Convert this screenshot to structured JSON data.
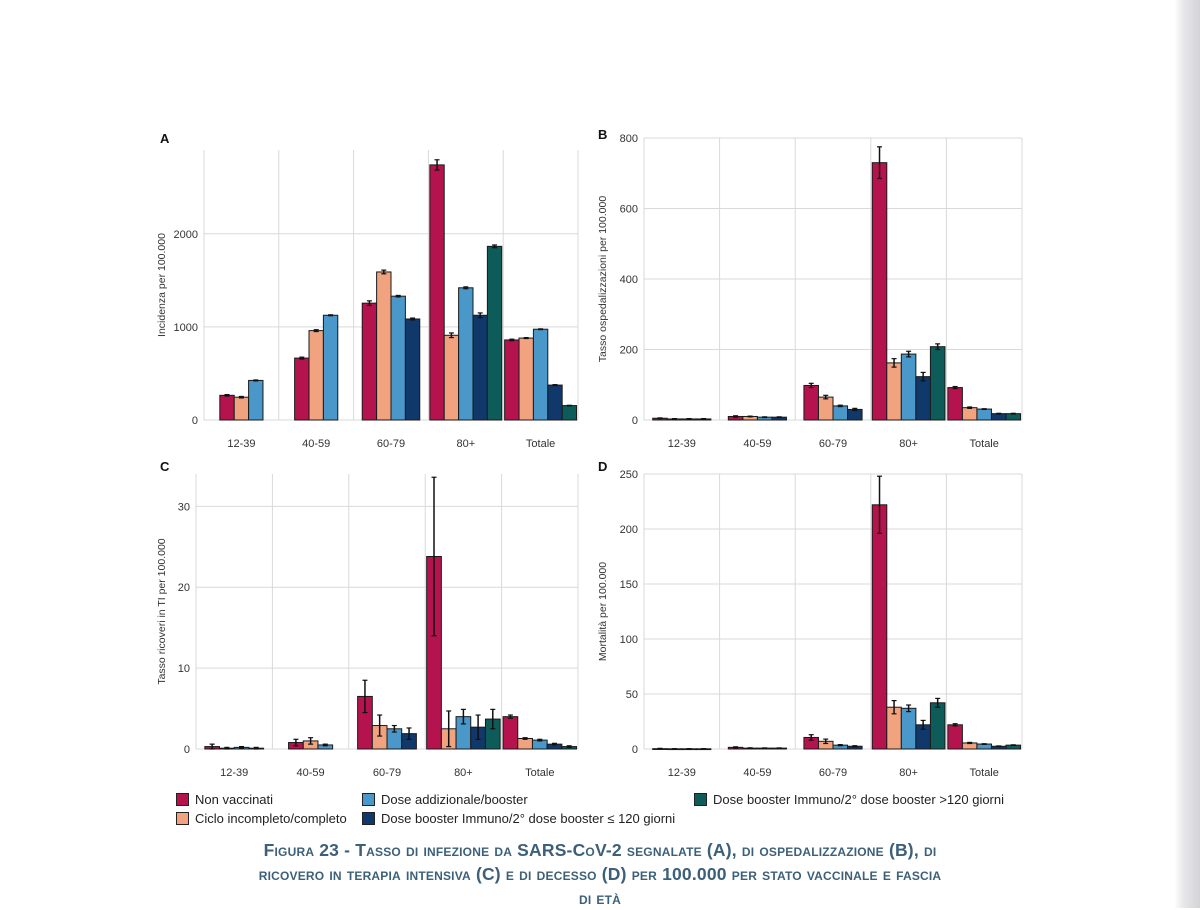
{
  "colors": {
    "non_vaccinati": "#b5134e",
    "ciclo": "#f1a27f",
    "addizionale": "#4a97c9",
    "booster_le120": "#10386a",
    "booster_gt120": "#0d5c59"
  },
  "legend": {
    "items": [
      {
        "key": "non_vaccinati",
        "label": "Non vaccinati"
      },
      {
        "key": "ciclo",
        "label": "Ciclo incompleto/completo"
      },
      {
        "key": "addizionale",
        "label": "Dose addizionale/booster"
      },
      {
        "key": "booster_le120",
        "label": "Dose booster Immuno/2° dose booster ≤ 120 giorni"
      },
      {
        "key": "booster_gt120",
        "label": "Dose booster Immuno/2° dose booster >120 giorni"
      }
    ]
  },
  "caption": {
    "line1": "Figura 23 - Tasso di infezione da SARS-CoV-2 segnalate (A), di ospedalizzazione (B), di",
    "line2": "ricovero in terapia intensiva (C) e di decesso (D) per 100.000 per stato vaccinale e fascia",
    "line3": "di età"
  },
  "chart_data": [
    {
      "panel": "A",
      "type": "bar",
      "title": "A",
      "ylabel": "Incidenza per 100.000",
      "categories": [
        "12-39",
        "40-59",
        "60-79",
        "80+",
        "Totale"
      ],
      "ylim": [
        0,
        2900
      ],
      "yticks": [
        0,
        1000,
        2000
      ],
      "series": [
        {
          "key": "non_vaccinati",
          "name": "Non vaccinati",
          "values": [
            265,
            665,
            1255,
            2740,
            860
          ],
          "err": [
            8,
            10,
            25,
            55,
            8
          ]
        },
        {
          "key": "ciclo",
          "name": "Ciclo incompleto/completo",
          "values": [
            245,
            960,
            1590,
            910,
            880
          ],
          "err": [
            8,
            10,
            20,
            25,
            5
          ]
        },
        {
          "key": "addizionale",
          "name": "Dose addizionale/booster",
          "values": [
            425,
            1125,
            1330,
            1420,
            975
          ],
          "err": [
            5,
            5,
            8,
            10,
            4
          ]
        },
        {
          "key": "booster_le120",
          "name": "Dose booster Immuno/2° dose booster ≤ 120 giorni",
          "values": [
            null,
            null,
            1085,
            1125,
            375
          ],
          "err": [
            null,
            null,
            10,
            25,
            5
          ]
        },
        {
          "key": "booster_gt120",
          "name": "Dose booster Immuno/2° dose booster >120 giorni",
          "values": [
            null,
            null,
            null,
            1865,
            155
          ],
          "err": [
            null,
            null,
            null,
            15,
            3
          ]
        }
      ]
    },
    {
      "panel": "B",
      "type": "bar",
      "title": "B",
      "ylabel": "Tasso ospedalizzazioni per 100.000",
      "categories": [
        "12-39",
        "40-59",
        "60-79",
        "80+",
        "Totale"
      ],
      "ylim": [
        0,
        800
      ],
      "yticks": [
        0,
        200,
        400,
        600,
        800
      ],
      "series": [
        {
          "key": "non_vaccinati",
          "name": "Non vaccinati",
          "values": [
            5,
            10,
            98,
            730,
            92
          ],
          "err": [
            1,
            2,
            6,
            45,
            3
          ]
        },
        {
          "key": "ciclo",
          "name": "Ciclo incompleto/completo",
          "values": [
            3,
            10,
            65,
            162,
            35
          ],
          "err": [
            1,
            1,
            5,
            12,
            2
          ]
        },
        {
          "key": "addizionale",
          "name": "Dose addizionale/booster",
          "values": [
            3,
            8,
            40,
            187,
            31
          ],
          "err": [
            1,
            1,
            2,
            8,
            1
          ]
        },
        {
          "key": "booster_le120",
          "name": "Dose booster Immuno/2° dose booster ≤ 120 giorni",
          "values": [
            3,
            8,
            30,
            123,
            18
          ],
          "err": [
            1,
            1,
            3,
            12,
            1
          ]
        },
        {
          "key": "booster_gt120",
          "name": "Dose booster Immuno/2° dose booster >120 giorni",
          "values": [
            null,
            null,
            null,
            208,
            18
          ],
          "err": [
            null,
            null,
            null,
            8,
            1
          ]
        }
      ]
    },
    {
      "panel": "C",
      "type": "bar",
      "title": "C",
      "ylabel": "Tasso ricoveri in TI per 100.000",
      "categories": [
        "12-39",
        "40-59",
        "60-79",
        "80+",
        "Totale"
      ],
      "ylim": [
        0,
        34
      ],
      "yticks": [
        0,
        10,
        20,
        30
      ],
      "series": [
        {
          "key": "non_vaccinati",
          "name": "Non vaccinati",
          "values": [
            0.3,
            0.8,
            6.5,
            23.8,
            4.0
          ],
          "err": [
            0.3,
            0.4,
            2.0,
            9.8,
            0.2
          ]
        },
        {
          "key": "ciclo",
          "name": "Ciclo incompleto/completo",
          "values": [
            0.1,
            1.0,
            2.9,
            2.5,
            1.3
          ],
          "err": [
            0.1,
            0.4,
            1.3,
            2.2,
            0.1
          ]
        },
        {
          "key": "addizionale",
          "name": "Dose addizionale/booster",
          "values": [
            0.2,
            0.5,
            2.5,
            4.0,
            1.1
          ],
          "err": [
            0.1,
            0.1,
            0.4,
            0.9,
            0.1
          ]
        },
        {
          "key": "booster_le120",
          "name": "Dose booster Immuno/2° dose booster ≤ 120 giorni",
          "values": [
            0.1,
            null,
            1.9,
            2.7,
            0.6
          ],
          "err": [
            0.1,
            null,
            0.7,
            1.5,
            0.1
          ]
        },
        {
          "key": "booster_gt120",
          "name": "Dose booster Immuno/2° dose booster >120 giorni",
          "values": [
            null,
            null,
            null,
            3.7,
            0.3
          ],
          "err": [
            null,
            null,
            null,
            1.2,
            0.1
          ]
        }
      ]
    },
    {
      "panel": "D",
      "type": "bar",
      "title": "D",
      "ylabel": "Mortalità per 100.000",
      "categories": [
        "12-39",
        "40-59",
        "60-79",
        "80+",
        "Totale"
      ],
      "ylim": [
        0,
        250
      ],
      "yticks": [
        0,
        50,
        100,
        150,
        200,
        250
      ],
      "series": [
        {
          "key": "non_vaccinati",
          "name": "Non vaccinati",
          "values": [
            0.3,
            1.5,
            10.5,
            222,
            22
          ],
          "err": [
            0.3,
            0.5,
            2.5,
            26,
            1
          ]
        },
        {
          "key": "ciclo",
          "name": "Ciclo incompleto/completo",
          "values": [
            0.2,
            0.8,
            7,
            38,
            5.5
          ],
          "err": [
            0.1,
            0.3,
            2,
            6,
            0.5
          ]
        },
        {
          "key": "addizionale",
          "name": "Dose addizionale/booster",
          "values": [
            0.2,
            0.8,
            3.5,
            37,
            4.5
          ],
          "err": [
            0.1,
            0.2,
            0.5,
            3,
            0.3
          ]
        },
        {
          "key": "booster_le120",
          "name": "Dose booster Immuno/2° dose booster ≤ 120 giorni",
          "values": [
            0.2,
            0.8,
            2.5,
            22,
            2.5
          ],
          "err": [
            0.1,
            0.2,
            0.5,
            4,
            0.3
          ]
        },
        {
          "key": "booster_gt120",
          "name": "Dose booster Immuno/2° dose booster >120 giorni",
          "values": [
            null,
            null,
            null,
            42,
            3.5
          ],
          "err": [
            null,
            null,
            null,
            4,
            0.3
          ]
        }
      ]
    }
  ]
}
